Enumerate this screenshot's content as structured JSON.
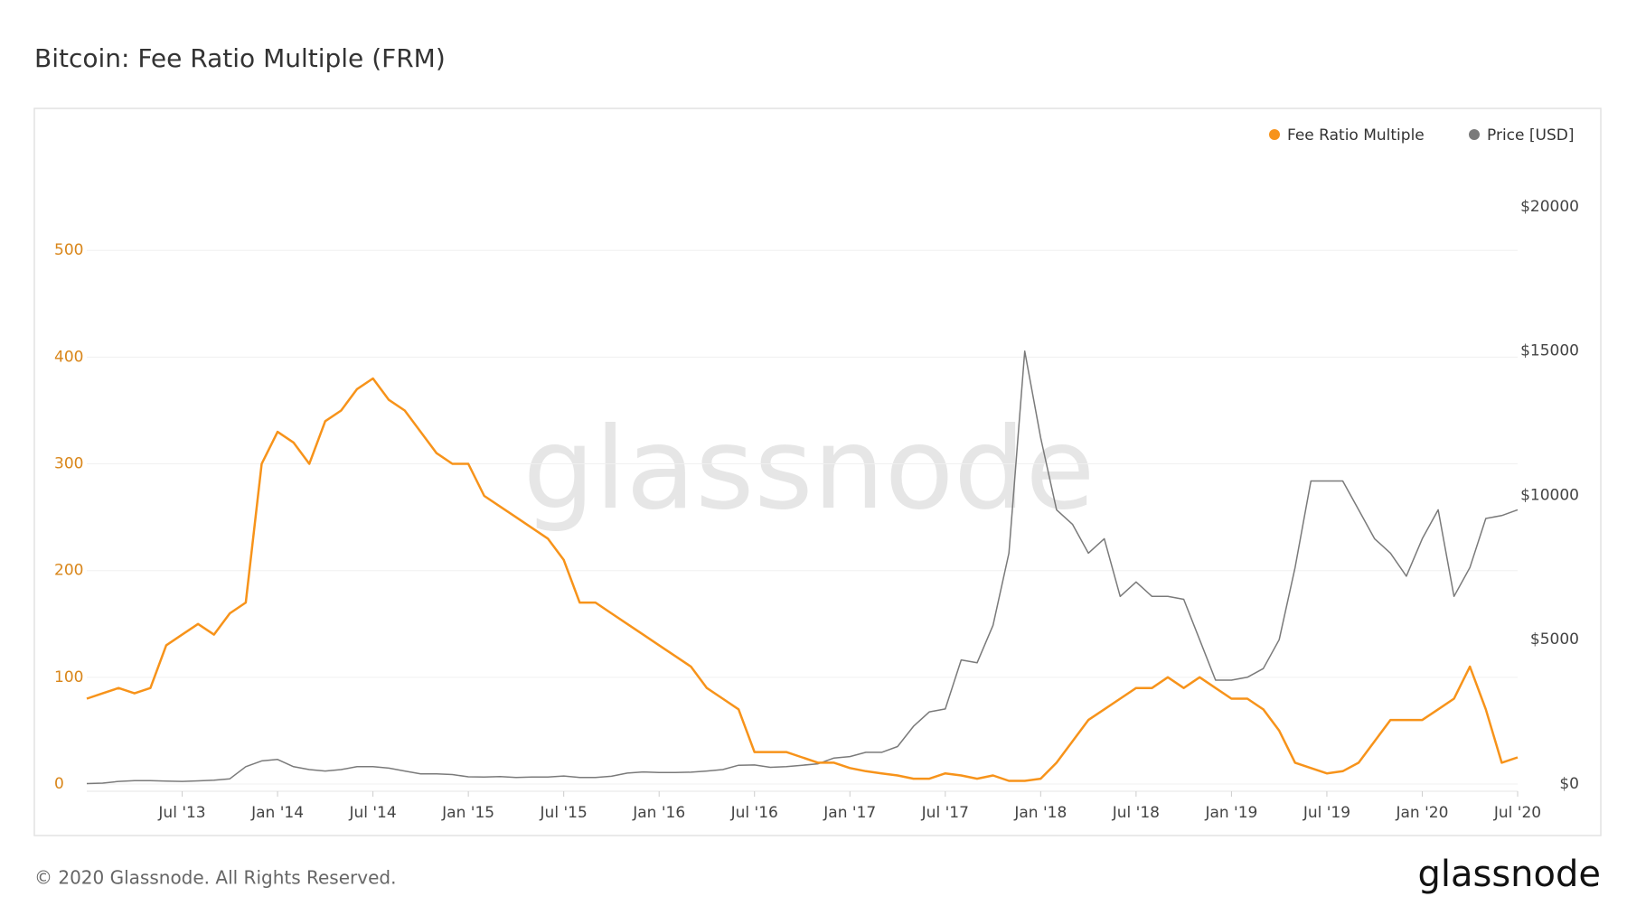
{
  "chart_data": {
    "type": "line",
    "title": "Bitcoin: Fee Ratio Multiple (FRM)",
    "watermark": "glassnode",
    "footer": "© 2020 Glassnode. All Rights Reserved.",
    "logo": "glassnode",
    "legend": "top-right",
    "grid": true,
    "x": [
      "2013-01",
      "2013-02",
      "2013-03",
      "2013-04",
      "2013-05",
      "2013-06",
      "2013-07",
      "2013-08",
      "2013-09",
      "2013-10",
      "2013-11",
      "2013-12",
      "2014-01",
      "2014-02",
      "2014-03",
      "2014-04",
      "2014-05",
      "2014-06",
      "2014-07",
      "2014-08",
      "2014-09",
      "2014-10",
      "2014-11",
      "2014-12",
      "2015-01",
      "2015-02",
      "2015-03",
      "2015-04",
      "2015-05",
      "2015-06",
      "2015-07",
      "2015-08",
      "2015-09",
      "2015-10",
      "2015-11",
      "2015-12",
      "2016-01",
      "2016-02",
      "2016-03",
      "2016-04",
      "2016-05",
      "2016-06",
      "2016-07",
      "2016-08",
      "2016-09",
      "2016-10",
      "2016-11",
      "2016-12",
      "2017-01",
      "2017-02",
      "2017-03",
      "2017-04",
      "2017-05",
      "2017-06",
      "2017-07",
      "2017-08",
      "2017-09",
      "2017-10",
      "2017-11",
      "2017-12",
      "2018-01",
      "2018-02",
      "2018-03",
      "2018-04",
      "2018-05",
      "2018-06",
      "2018-07",
      "2018-08",
      "2018-09",
      "2018-10",
      "2018-11",
      "2018-12",
      "2019-01",
      "2019-02",
      "2019-03",
      "2019-04",
      "2019-05",
      "2019-06",
      "2019-07",
      "2019-08",
      "2019-09",
      "2019-10",
      "2019-11",
      "2019-12",
      "2020-01",
      "2020-02",
      "2020-03",
      "2020-04",
      "2020-05",
      "2020-06",
      "2020-07"
    ],
    "xlim": [
      "2013-01",
      "2020-07"
    ],
    "xticks": [
      {
        "value": "2013-07",
        "label": "Jul '13"
      },
      {
        "value": "2014-01",
        "label": "Jan '14"
      },
      {
        "value": "2014-07",
        "label": "Jul '14"
      },
      {
        "value": "2015-01",
        "label": "Jan '15"
      },
      {
        "value": "2015-07",
        "label": "Jul '15"
      },
      {
        "value": "2016-01",
        "label": "Jan '16"
      },
      {
        "value": "2016-07",
        "label": "Jul '16"
      },
      {
        "value": "2017-01",
        "label": "Jan '17"
      },
      {
        "value": "2017-07",
        "label": "Jul '17"
      },
      {
        "value": "2018-01",
        "label": "Jan '18"
      },
      {
        "value": "2018-07",
        "label": "Jul '18"
      },
      {
        "value": "2019-01",
        "label": "Jan '19"
      },
      {
        "value": "2019-07",
        "label": "Jul '19"
      },
      {
        "value": "2020-01",
        "label": "Jan '20"
      },
      {
        "value": "2020-07",
        "label": "Jul '20"
      }
    ],
    "ylim": [
      0,
      595
    ],
    "yticks": [
      0,
      100,
      200,
      300,
      400,
      500
    ],
    "y2lim": [
      0,
      22000
    ],
    "y2ticks": [
      {
        "value": 0,
        "label": "$0"
      },
      {
        "value": 5000,
        "label": "$5000"
      },
      {
        "value": 10000,
        "label": "$10000"
      },
      {
        "value": 15000,
        "label": "$15000"
      },
      {
        "value": 20000,
        "label": "$20000"
      }
    ],
    "series": [
      {
        "name": "Fee Ratio Multiple",
        "color": "#f7931a",
        "axis": "y",
        "values": [
          80,
          85,
          90,
          85,
          90,
          130,
          140,
          150,
          140,
          160,
          170,
          300,
          330,
          320,
          300,
          340,
          350,
          370,
          380,
          360,
          350,
          330,
          310,
          300,
          300,
          270,
          260,
          250,
          240,
          230,
          210,
          170,
          170,
          160,
          150,
          140,
          130,
          120,
          110,
          90,
          80,
          70,
          30,
          30,
          30,
          25,
          20,
          20,
          15,
          12,
          10,
          8,
          5,
          5,
          10,
          8,
          5,
          8,
          3,
          3,
          5,
          20,
          40,
          60,
          70,
          80,
          90,
          90,
          100,
          90,
          100,
          90,
          80,
          80,
          70,
          50,
          20,
          15,
          10,
          12,
          20,
          40,
          60,
          60,
          60,
          70,
          80,
          110,
          70,
          20,
          25
        ]
      },
      {
        "name": "Price [USD]",
        "color": "#7a7a7a",
        "axis": "y2",
        "values": [
          15,
          30,
          90,
          120,
          120,
          100,
          90,
          110,
          130,
          180,
          600,
          800,
          850,
          600,
          500,
          450,
          500,
          600,
          600,
          550,
          450,
          350,
          350,
          330,
          250,
          240,
          260,
          230,
          240,
          240,
          280,
          230,
          230,
          270,
          380,
          420,
          400,
          400,
          410,
          450,
          500,
          650,
          660,
          580,
          600,
          650,
          700,
          900,
          950,
          1100,
          1100,
          1300,
          2000,
          2500,
          2600,
          4300,
          4200,
          5500,
          8000,
          15000,
          12000,
          9500,
          9000,
          8000,
          8500,
          6500,
          7000,
          6500,
          6500,
          6400,
          5000,
          3600,
          3600,
          3700,
          4000,
          5000,
          7500,
          10500,
          10500,
          10500,
          9500,
          8500,
          8000,
          7200,
          8500,
          9500,
          6500,
          7500,
          9200,
          9300,
          9500
        ]
      }
    ]
  }
}
